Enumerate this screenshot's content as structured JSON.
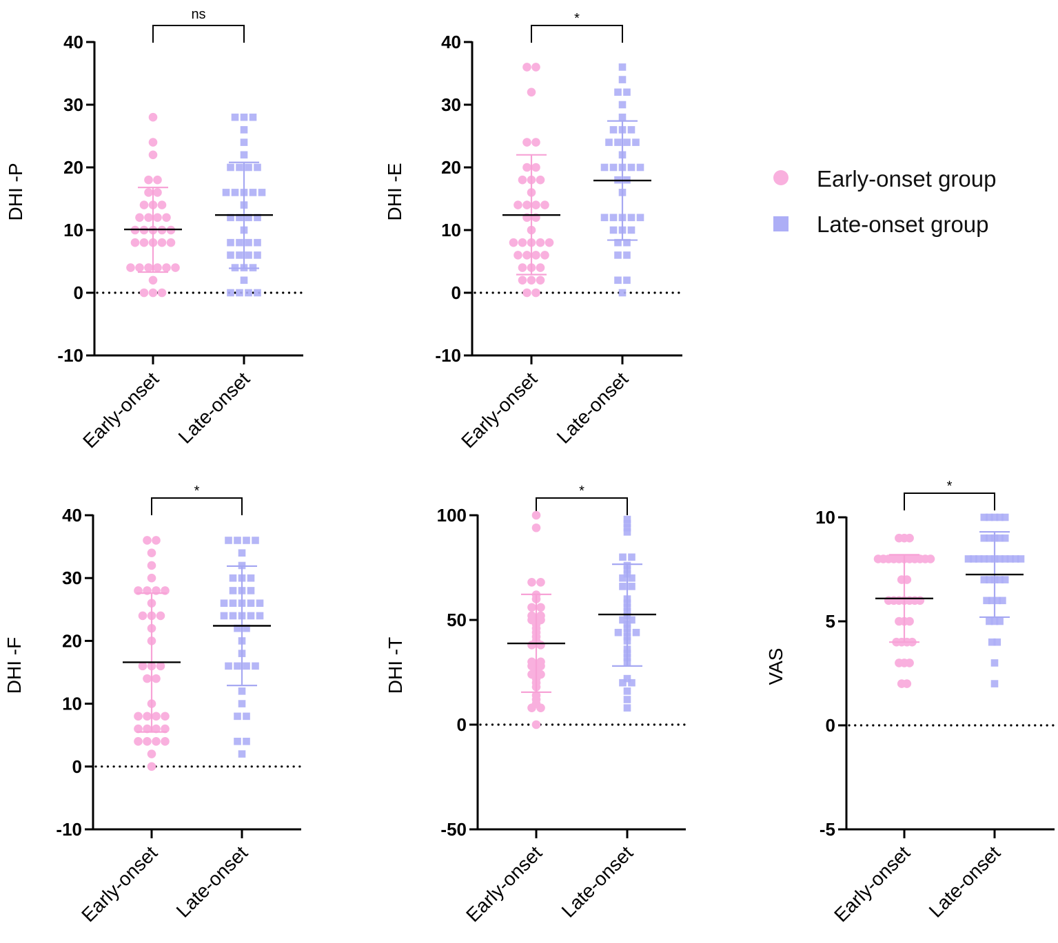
{
  "legend": {
    "items": [
      {
        "label": "Early-onset group",
        "shape": "circle",
        "color": "#F9B0DE"
      },
      {
        "label": "Late-onset group",
        "shape": "square",
        "color": "#ADAEF6"
      }
    ]
  },
  "chart_data": [
    {
      "type": "scatter",
      "title": "",
      "ylabel": "DHI -P",
      "categories": [
        "Early-onset",
        "Late-onset"
      ],
      "ylim": [
        -10,
        40
      ],
      "yticks": [
        -10,
        0,
        10,
        20,
        30,
        40
      ],
      "significance": "ns",
      "reference_line": 0,
      "series": [
        {
          "name": "Early-onset",
          "mean": 10.1,
          "sd_upper": 16.8,
          "sd_lower": 3.3,
          "values": [
            28,
            24,
            22,
            18,
            18,
            16,
            16,
            14,
            14,
            14,
            12,
            12,
            12,
            12,
            10,
            10,
            10,
            10,
            10,
            8,
            8,
            8,
            8,
            8,
            4,
            4,
            4,
            4,
            4,
            4,
            2,
            0,
            0,
            0
          ]
        },
        {
          "name": "Late-onset",
          "mean": 12.4,
          "sd_upper": 20.8,
          "sd_lower": 3.9,
          "values": [
            28,
            28,
            28,
            26,
            24,
            22,
            20,
            20,
            20,
            20,
            16,
            16,
            16,
            16,
            16,
            14,
            12,
            12,
            12,
            12,
            10,
            8,
            8,
            8,
            8,
            6,
            6,
            6,
            6,
            4,
            4,
            4,
            2,
            0,
            0,
            0,
            0
          ]
        }
      ]
    },
    {
      "type": "scatter",
      "title": "",
      "ylabel": "DHI -E",
      "categories": [
        "Early-onset",
        "Late-onset"
      ],
      "ylim": [
        -10,
        40
      ],
      "yticks": [
        -10,
        0,
        10,
        20,
        30,
        40
      ],
      "significance": "*",
      "reference_line": 0,
      "series": [
        {
          "name": "Early-onset",
          "mean": 12.4,
          "sd_upper": 22.0,
          "sd_lower": 2.9,
          "values": [
            36,
            36,
            32,
            24,
            24,
            20,
            20,
            18,
            18,
            18,
            16,
            14,
            14,
            14,
            14,
            12,
            12,
            10,
            8,
            8,
            8,
            8,
            8,
            6,
            6,
            6,
            6,
            4,
            4,
            4,
            2,
            2,
            2,
            0,
            0
          ]
        },
        {
          "name": "Late-onset",
          "mean": 17.9,
          "sd_upper": 27.4,
          "sd_lower": 8.4,
          "values": [
            36,
            34,
            32,
            32,
            30,
            28,
            26,
            26,
            26,
            24,
            24,
            24,
            24,
            22,
            20,
            20,
            20,
            20,
            20,
            18,
            18,
            16,
            12,
            12,
            12,
            12,
            12,
            10,
            10,
            10,
            8,
            8,
            6,
            6,
            2,
            2,
            0
          ]
        }
      ]
    },
    {
      "type": "scatter",
      "title": "",
      "ylabel": "DHI -F",
      "categories": [
        "Early-onset",
        "Late-onset"
      ],
      "ylim": [
        -10,
        40
      ],
      "yticks": [
        -10,
        0,
        10,
        20,
        30,
        40
      ],
      "significance": "*",
      "reference_line": 0,
      "series": [
        {
          "name": "Early-onset",
          "mean": 16.6,
          "sd_upper": 27.6,
          "sd_lower": 5.5,
          "values": [
            36,
            36,
            34,
            32,
            30,
            28,
            28,
            28,
            28,
            26,
            24,
            24,
            24,
            22,
            20,
            16,
            16,
            16,
            14,
            14,
            10,
            8,
            8,
            8,
            8,
            6,
            6,
            6,
            6,
            4,
            4,
            4,
            4,
            2,
            0
          ]
        },
        {
          "name": "Late-onset",
          "mean": 22.4,
          "sd_upper": 31.9,
          "sd_lower": 12.9,
          "values": [
            36,
            36,
            36,
            36,
            34,
            32,
            30,
            30,
            30,
            28,
            28,
            28,
            26,
            26,
            26,
            26,
            26,
            24,
            24,
            24,
            24,
            24,
            22,
            22,
            20,
            18,
            16,
            16,
            16,
            16,
            12,
            10,
            8,
            8,
            4,
            4,
            2
          ]
        }
      ]
    },
    {
      "type": "scatter",
      "title": "",
      "ylabel": "DHI -T",
      "categories": [
        "Early-onset",
        "Late-onset"
      ],
      "ylim": [
        -50,
        100
      ],
      "yticks": [
        -50,
        0,
        50,
        100
      ],
      "significance": "*",
      "reference_line": 0,
      "series": [
        {
          "name": "Early-onset",
          "mean": 38.8,
          "sd_upper": 62.2,
          "sd_lower": 15.5,
          "values": [
            100,
            94,
            68,
            68,
            62,
            60,
            56,
            56,
            52,
            52,
            50,
            50,
            48,
            46,
            44,
            42,
            40,
            38,
            38,
            30,
            30,
            28,
            28,
            26,
            24,
            24,
            22,
            20,
            18,
            14,
            12,
            10,
            8,
            8,
            0
          ]
        },
        {
          "name": "Late-onset",
          "mean": 52.6,
          "sd_upper": 76.6,
          "sd_lower": 28.0,
          "values": [
            98,
            96,
            94,
            92,
            80,
            80,
            76,
            74,
            72,
            70,
            70,
            66,
            66,
            60,
            58,
            56,
            54,
            52,
            50,
            50,
            48,
            46,
            44,
            44,
            44,
            42,
            40,
            36,
            34,
            32,
            30,
            22,
            20,
            20,
            16,
            12,
            8
          ]
        }
      ]
    },
    {
      "type": "scatter",
      "title": "",
      "ylabel": "VAS",
      "categories": [
        "Early-onset",
        "Late-onset"
      ],
      "ylim": [
        -5,
        10
      ],
      "yticks": [
        -5,
        0,
        5,
        10
      ],
      "significance": "*",
      "reference_line": 0,
      "series": [
        {
          "name": "Early-onset",
          "mean": 6.1,
          "sd_upper": 8.2,
          "sd_lower": 4.0,
          "values": [
            9,
            9,
            9,
            8,
            8,
            8,
            8,
            8,
            8,
            8,
            8,
            8,
            8,
            8,
            7,
            7,
            6,
            6,
            6,
            6,
            6,
            6,
            6,
            5,
            5,
            5,
            4,
            4,
            4,
            4,
            3,
            3,
            3,
            2,
            2
          ]
        },
        {
          "name": "Late-onset",
          "mean": 7.25,
          "sd_upper": 9.3,
          "sd_lower": 5.2,
          "values": [
            10,
            10,
            10,
            10,
            10,
            9,
            9,
            9,
            9,
            9,
            8,
            8,
            8,
            8,
            8,
            8,
            8,
            8,
            8,
            8,
            8,
            7,
            7,
            7,
            7,
            7,
            6,
            6,
            6,
            6,
            5,
            5,
            5,
            4,
            4,
            3,
            2
          ]
        }
      ]
    }
  ]
}
